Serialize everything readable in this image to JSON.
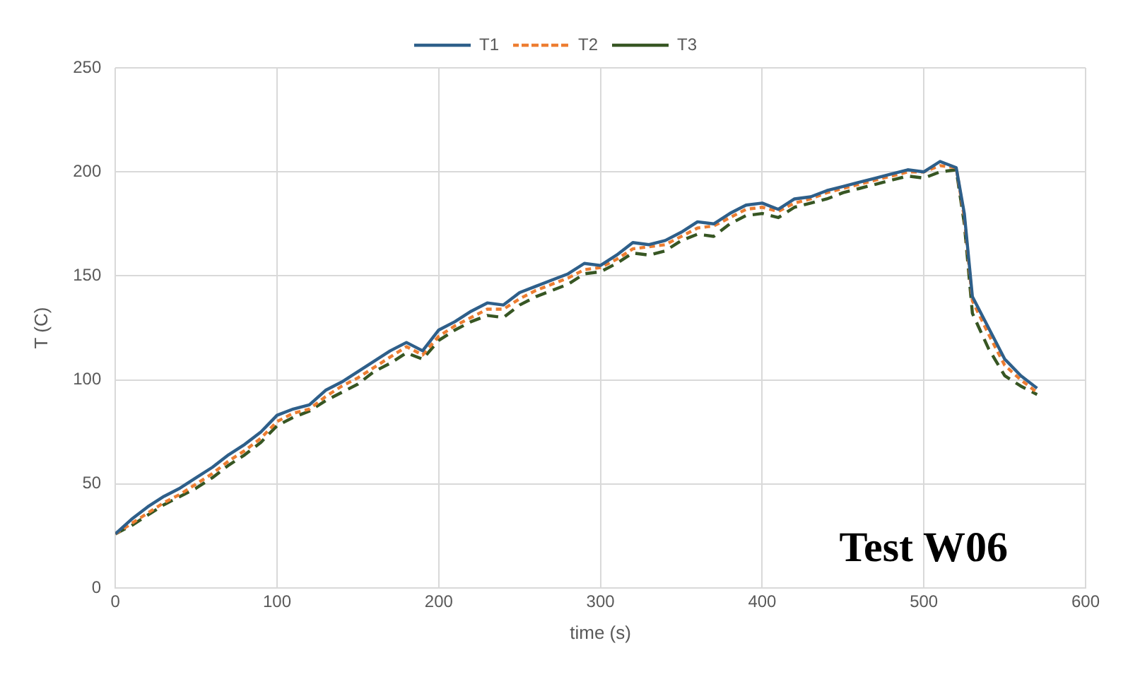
{
  "chart_data": {
    "type": "line",
    "xlabel": "time (s)",
    "ylabel": "T (C)",
    "xlim": [
      0,
      600
    ],
    "xticks": [
      0,
      100,
      200,
      300,
      400,
      500,
      600
    ],
    "ylim": [
      0,
      250
    ],
    "yticks": [
      0,
      50,
      100,
      150,
      200,
      250
    ],
    "grid": true,
    "legend": "top",
    "marker": "none",
    "annotations": [
      "Test W06"
    ],
    "x": [
      0,
      10,
      20,
      30,
      40,
      50,
      60,
      70,
      80,
      90,
      100,
      110,
      120,
      130,
      140,
      150,
      160,
      170,
      180,
      190,
      200,
      210,
      220,
      230,
      240,
      250,
      260,
      270,
      280,
      290,
      300,
      310,
      320,
      330,
      340,
      350,
      360,
      370,
      380,
      390,
      400,
      410,
      420,
      430,
      440,
      450,
      460,
      470,
      480,
      490,
      500,
      510,
      520,
      525,
      530,
      540,
      550,
      560,
      570
    ],
    "series": [
      {
        "name": "T1",
        "color": "#2e5f8a",
        "line_style": "solid",
        "values": [
          26,
          33,
          39,
          44,
          48,
          53,
          58,
          64,
          69,
          75,
          83,
          86,
          88,
          95,
          99,
          104,
          109,
          114,
          118,
          114,
          124,
          128,
          133,
          137,
          136,
          142,
          145,
          148,
          151,
          156,
          155,
          160,
          166,
          165,
          167,
          171,
          176,
          175,
          180,
          184,
          185,
          182,
          187,
          188,
          191,
          193,
          195,
          197,
          199,
          201,
          200,
          205,
          202,
          180,
          140,
          125,
          110,
          102,
          96
        ]
      },
      {
        "name": "T2",
        "color": "#ed7d31",
        "line_style": "dotted",
        "values": [
          26,
          31,
          36,
          41,
          45,
          50,
          55,
          61,
          66,
          72,
          80,
          84,
          86,
          92,
          97,
          101,
          106,
          111,
          116,
          112,
          121,
          126,
          130,
          134,
          134,
          139,
          143,
          146,
          149,
          153,
          154,
          158,
          163,
          164,
          165,
          169,
          173,
          174,
          178,
          182,
          183,
          181,
          185,
          187,
          190,
          192,
          194,
          196,
          198,
          200,
          200,
          203,
          202,
          178,
          138,
          122,
          107,
          100,
          94
        ]
      },
      {
        "name": "T3",
        "color": "#375623",
        "line_style": "dashed",
        "values": [
          26,
          30,
          35,
          40,
          44,
          48,
          53,
          59,
          64,
          70,
          78,
          82,
          85,
          90,
          94,
          98,
          104,
          108,
          113,
          110,
          119,
          124,
          128,
          131,
          130,
          136,
          140,
          143,
          146,
          151,
          152,
          156,
          161,
          160,
          162,
          167,
          170,
          169,
          175,
          179,
          180,
          178,
          183,
          185,
          187,
          190,
          192,
          194,
          196,
          198,
          197,
          200,
          201,
          175,
          132,
          115,
          102,
          97,
          93
        ]
      }
    ]
  }
}
